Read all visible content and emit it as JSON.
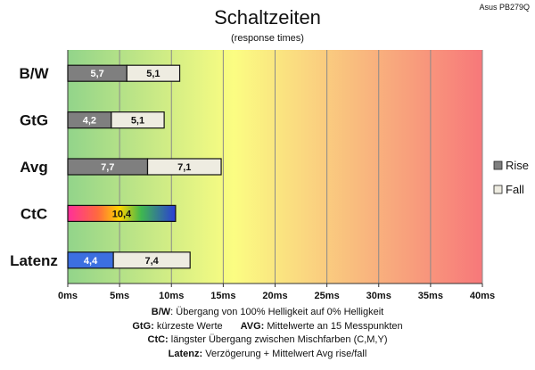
{
  "chart_data": {
    "type": "bar",
    "stacked": true,
    "orientation": "horizontal",
    "title": "Schaltzeiten",
    "subtitle": "(response times)",
    "device": "Asus PB279Q",
    "categories": [
      "B/W",
      "GtG",
      "Avg",
      "CtC",
      "Latenz"
    ],
    "series": [
      {
        "name": "Rise",
        "values": [
          5.7,
          4.2,
          7.7,
          null,
          4.4
        ]
      },
      {
        "name": "Fall",
        "values": [
          5.1,
          5.1,
          7.1,
          null,
          7.4
        ]
      }
    ],
    "single_bars": [
      {
        "category": "CtC",
        "value": 10.4
      }
    ],
    "value_labels": {
      "rise": [
        "5,7",
        "4,2",
        "7,7",
        "",
        "4,4"
      ],
      "fall": [
        "5,1",
        "5,1",
        "7,1",
        "",
        "7,4"
      ],
      "single": "10,4"
    },
    "xlim": [
      0,
      40
    ],
    "x_ticks": [
      0,
      5,
      10,
      15,
      20,
      25,
      30,
      35,
      40
    ],
    "x_tick_labels": [
      "0ms",
      "5ms",
      "10ms",
      "15ms",
      "20ms",
      "25ms",
      "30ms",
      "35ms",
      "40ms"
    ],
    "grid": true,
    "background": "green-to-yellow-to-red gradient",
    "legend_position": "right",
    "colors": {
      "rise": "#7f7f7f",
      "fall": "#eeece1",
      "latenz_rise": "#3c6fe0",
      "gradient_green": "#92d48a",
      "gradient_yellow": "#fbfd82",
      "gradient_red": "#f7787a"
    }
  },
  "footnotes": {
    "bw_label": "B/W",
    "bw_text": ":  Übergang von 100% Helligkeit auf 0% Helligkeit",
    "gtg_label": "GtG:",
    "gtg_text": " kürzeste  Werte",
    "avg_label": "AVG:",
    "avg_text": " Mittelwerte  an 15 Messpunkten",
    "ctc_label": "CtC:",
    "ctc_text": " längster Übergang  zwischen Mischfarben  (C,M,Y)",
    "latenz_label": "Latenz:",
    "latenz_text": " Verzögerung  + Mittelwert Avg rise/fall"
  }
}
